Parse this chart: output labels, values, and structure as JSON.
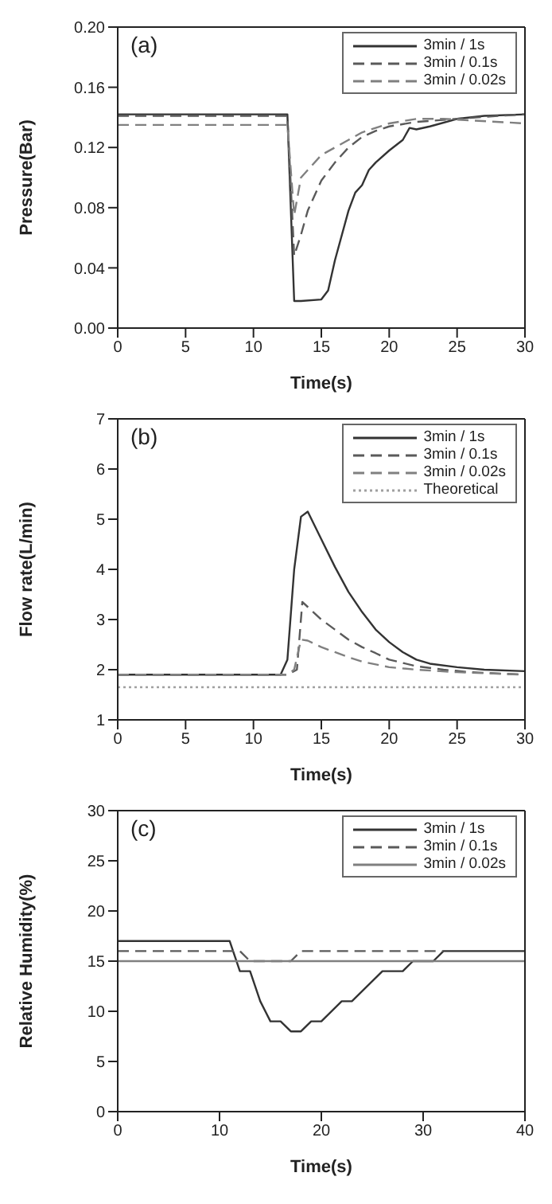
{
  "chart_data": [
    {
      "type": "line",
      "annotations": [
        "(a)"
      ],
      "xlabel": "Time(s)",
      "ylabel": "Pressure(Bar)",
      "xlim": [
        0,
        30
      ],
      "xticks": [
        0,
        5,
        10,
        15,
        20,
        25,
        30
      ],
      "ylim": [
        0,
        0.2
      ],
      "yticks": [
        {
          "value": 0,
          "label": "0.00"
        },
        0.04,
        0.08,
        0.12,
        0.16,
        {
          "value": 0.2,
          "label": "0.20"
        }
      ],
      "legend": "top right",
      "marker": "none",
      "series": [
        {
          "name": "3min / 1s",
          "color": "#333333",
          "line_style": "solid",
          "x": [
            0,
            12.5,
            13,
            13.5,
            15,
            15.5,
            16,
            17,
            17.5,
            18,
            18.5,
            19,
            20,
            21,
            21.5,
            22,
            23,
            25,
            27,
            30
          ],
          "values": [
            0.142,
            0.142,
            0.018,
            0.018,
            0.019,
            0.025,
            0.045,
            0.078,
            0.09,
            0.095,
            0.105,
            0.11,
            0.118,
            0.125,
            0.133,
            0.132,
            0.134,
            0.139,
            0.141,
            0.142
          ]
        },
        {
          "name": "3min / 0.1s",
          "color": "#5a5a5a",
          "line_style": "dashed",
          "x": [
            0,
            12.5,
            13,
            13.5,
            14,
            15,
            16,
            17,
            18,
            19,
            20,
            22,
            25,
            28,
            30
          ],
          "values": [
            0.141,
            0.141,
            0.048,
            0.062,
            0.078,
            0.098,
            0.11,
            0.12,
            0.127,
            0.131,
            0.134,
            0.137,
            0.139,
            0.141,
            0.142
          ]
        },
        {
          "name": "3min / 0.02s",
          "color": "#808080",
          "line_style": "dashed",
          "x": [
            0,
            12.5,
            13,
            13.3,
            13.5,
            14,
            15,
            16,
            17,
            18,
            19,
            20,
            22,
            24,
            26,
            30
          ],
          "values": [
            0.135,
            0.135,
            0.075,
            0.09,
            0.1,
            0.105,
            0.115,
            0.12,
            0.125,
            0.13,
            0.133,
            0.136,
            0.139,
            0.139,
            0.138,
            0.136
          ]
        }
      ]
    },
    {
      "type": "line",
      "annotations": [
        "(b)"
      ],
      "xlabel": "Time(s)",
      "ylabel": "Flow rate(L/min)",
      "xlim": [
        0,
        30
      ],
      "xticks": [
        0,
        5,
        10,
        15,
        20,
        25,
        30
      ],
      "ylim": [
        1,
        7
      ],
      "yticks": [
        1,
        2,
        3,
        4,
        5,
        6,
        7
      ],
      "legend": "top right",
      "marker": "none",
      "series": [
        {
          "name": "3min / 1s",
          "color": "#333333",
          "line_style": "solid",
          "x": [
            0,
            12,
            12.5,
            13,
            13.5,
            14,
            15,
            16,
            17,
            18,
            19,
            20,
            21,
            22,
            23,
            25,
            27,
            30
          ],
          "values": [
            1.9,
            1.9,
            2.2,
            4.0,
            5.05,
            5.15,
            4.6,
            4.05,
            3.55,
            3.15,
            2.8,
            2.55,
            2.35,
            2.2,
            2.12,
            2.05,
            2.0,
            1.97
          ]
        },
        {
          "name": "3min / 0.1s",
          "color": "#5a5a5a",
          "line_style": "dashed",
          "x": [
            0,
            12.5,
            13.2,
            13.6,
            14,
            15,
            16,
            17,
            18,
            19,
            20,
            22,
            24,
            26,
            30
          ],
          "values": [
            1.9,
            1.9,
            2.0,
            3.35,
            3.25,
            3.0,
            2.8,
            2.6,
            2.45,
            2.33,
            2.2,
            2.07,
            2.0,
            1.95,
            1.9
          ]
        },
        {
          "name": "3min / 0.02s",
          "color": "#808080",
          "line_style": "dashed",
          "x": [
            0,
            12.5,
            13,
            13.5,
            14,
            15,
            16,
            17,
            18,
            20,
            22,
            25,
            30
          ],
          "values": [
            1.9,
            1.9,
            2.0,
            2.6,
            2.58,
            2.45,
            2.35,
            2.25,
            2.16,
            2.05,
            2.0,
            1.95,
            1.9
          ]
        },
        {
          "name": "Theoretical",
          "color": "#a0a0a0",
          "line_style": "dotted",
          "x": [
            0,
            30
          ],
          "values": [
            1.65,
            1.65
          ]
        }
      ]
    },
    {
      "type": "line",
      "annotations": [
        "(c)"
      ],
      "xlabel": "Time(s)",
      "ylabel": "Relative Humidity(%)",
      "xlim": [
        0,
        40
      ],
      "xticks": [
        0,
        10,
        20,
        30,
        40
      ],
      "ylim": [
        0,
        30
      ],
      "yticks": [
        0,
        5,
        10,
        15,
        20,
        25,
        30
      ],
      "legend": "top right",
      "marker": "none",
      "series": [
        {
          "name": "3min / 1s",
          "color": "#333333",
          "line_style": "solid",
          "x": [
            0,
            11,
            12,
            13,
            14,
            15,
            16,
            17,
            18,
            19,
            20,
            22,
            23,
            26,
            28,
            29,
            31,
            32,
            40
          ],
          "values": [
            17,
            17,
            14,
            14,
            11,
            9,
            9,
            8,
            8,
            9,
            9,
            11,
            11,
            14,
            14,
            15,
            15,
            16,
            16
          ]
        },
        {
          "name": "3min / 0.1s",
          "color": "#5a5a5a",
          "line_style": "dashed",
          "x": [
            0,
            12,
            13,
            17,
            18,
            32
          ],
          "values": [
            16,
            16,
            15,
            15,
            16,
            16
          ]
        },
        {
          "name": "3min / 0.02s",
          "color": "#808080",
          "line_style": "solid",
          "x": [
            0,
            40
          ],
          "values": [
            15,
            15
          ]
        }
      ]
    }
  ]
}
